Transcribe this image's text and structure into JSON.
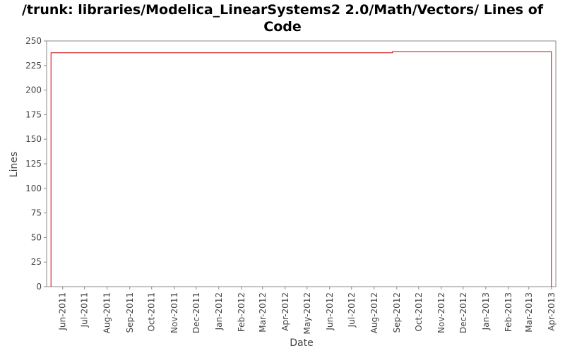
{
  "chart_data": {
    "type": "line",
    "title_line1": "/trunk: libraries/Modelica_LinearSystems2 2.0/Math/Vectors/ Lines of",
    "title_line2": "Code",
    "xlabel": "Date",
    "ylabel": "Lines",
    "ylim": [
      0,
      250
    ],
    "y_ticks": [
      0,
      25,
      50,
      75,
      100,
      125,
      150,
      175,
      200,
      225,
      250
    ],
    "xlim": [
      "2011-05-10",
      "2013-04-07"
    ],
    "x_ticks": [
      {
        "date": "2011-06-01",
        "label": "Jun-2011"
      },
      {
        "date": "2011-07-01",
        "label": "Jul-2011"
      },
      {
        "date": "2011-08-01",
        "label": "Aug-2011"
      },
      {
        "date": "2011-09-01",
        "label": "Sep-2011"
      },
      {
        "date": "2011-10-01",
        "label": "Oct-2011"
      },
      {
        "date": "2011-11-01",
        "label": "Nov-2011"
      },
      {
        "date": "2011-12-01",
        "label": "Dec-2011"
      },
      {
        "date": "2012-01-01",
        "label": "Jan-2012"
      },
      {
        "date": "2012-02-01",
        "label": "Feb-2012"
      },
      {
        "date": "2012-03-01",
        "label": "Mar-2012"
      },
      {
        "date": "2012-04-01",
        "label": "Apr-2012"
      },
      {
        "date": "2012-05-01",
        "label": "May-2012"
      },
      {
        "date": "2012-06-01",
        "label": "Jun-2012"
      },
      {
        "date": "2012-07-01",
        "label": "Jul-2012"
      },
      {
        "date": "2012-08-01",
        "label": "Aug-2012"
      },
      {
        "date": "2012-09-01",
        "label": "Sep-2012"
      },
      {
        "date": "2012-10-01",
        "label": "Oct-2012"
      },
      {
        "date": "2012-11-01",
        "label": "Nov-2012"
      },
      {
        "date": "2012-12-01",
        "label": "Dec-2012"
      },
      {
        "date": "2013-01-01",
        "label": "Jan-2013"
      },
      {
        "date": "2013-02-01",
        "label": "Feb-2013"
      },
      {
        "date": "2013-03-01",
        "label": "Mar-2013"
      },
      {
        "date": "2013-04-01",
        "label": "Apr-2013"
      }
    ],
    "series": [
      {
        "color": "#cc0000",
        "step": true,
        "points": [
          {
            "x": "2011-05-16",
            "y": 0
          },
          {
            "x": "2011-05-16",
            "y": 238
          },
          {
            "x": "2012-08-26",
            "y": 238
          },
          {
            "x": "2012-08-26",
            "y": 239
          },
          {
            "x": "2013-04-01",
            "y": 239
          },
          {
            "x": "2013-04-01",
            "y": 0
          }
        ]
      }
    ],
    "grid": false,
    "legend": "none"
  }
}
